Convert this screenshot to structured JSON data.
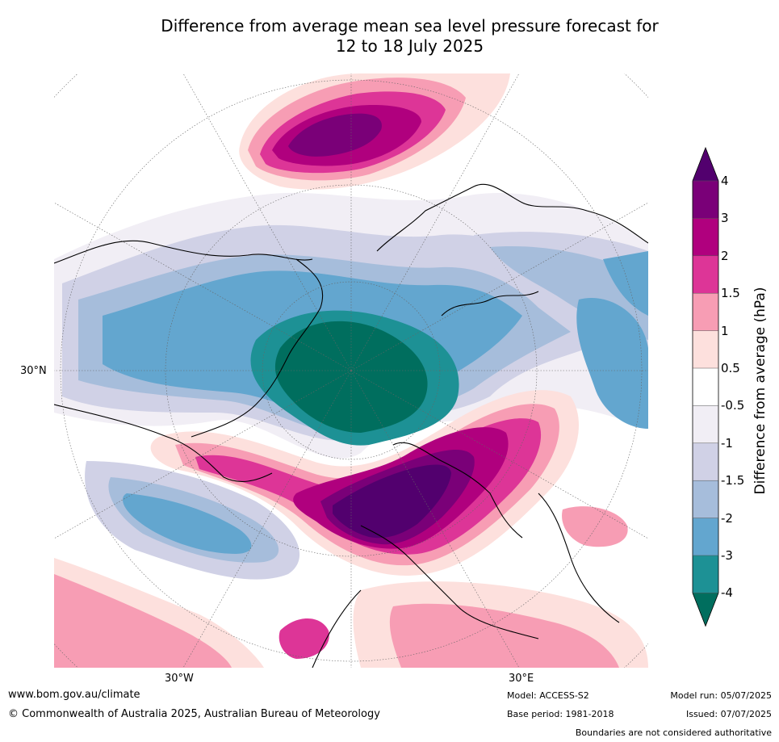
{
  "title_line1": "Difference from average mean sea level pressure forecast for",
  "title_line2": "12 to 18 July 2025",
  "map": {
    "lat_label": "30°N",
    "lon_label_west": "30°W",
    "lon_label_east": "30°E"
  },
  "colorbar": {
    "label": "Difference from average (hPa)",
    "ticks": [
      "4",
      "3",
      "2",
      "1.5",
      "1",
      "0.5",
      "-0.5",
      "-1",
      "-1.5",
      "-2",
      "-3",
      "-4"
    ],
    "colors": {
      "above_4": "#52006e",
      "3_to_4": "#7a0078",
      "2_to_3": "#b0007e",
      "1.5_to_2": "#dd3597",
      "1_to_1.5": "#f79db4",
      "0.5_to_1": "#fde0dd",
      "-0.5_to_0.5": "#ffffff",
      "-1_to_-0.5": "#f1eef5",
      "-1.5_to_-1": "#d0d1e6",
      "-2_to_-1.5": "#a6bddb",
      "-3_to_-2": "#63a6cf",
      "-4_to_-3": "#1d9195",
      "below_-4": "#006e5e"
    }
  },
  "footer": {
    "website": "www.bom.gov.au/climate",
    "copyright": "© Commonwealth of Australia 2025, Australian Bureau of Meteorology",
    "model": "Model: ACCESS-S2",
    "base_period": "Base period: 1981-2018",
    "model_run": "Model run: 05/07/2025",
    "issued": "Issued: 07/07/2025",
    "boundaries_note": "Boundaries are not considered authoritative"
  }
}
